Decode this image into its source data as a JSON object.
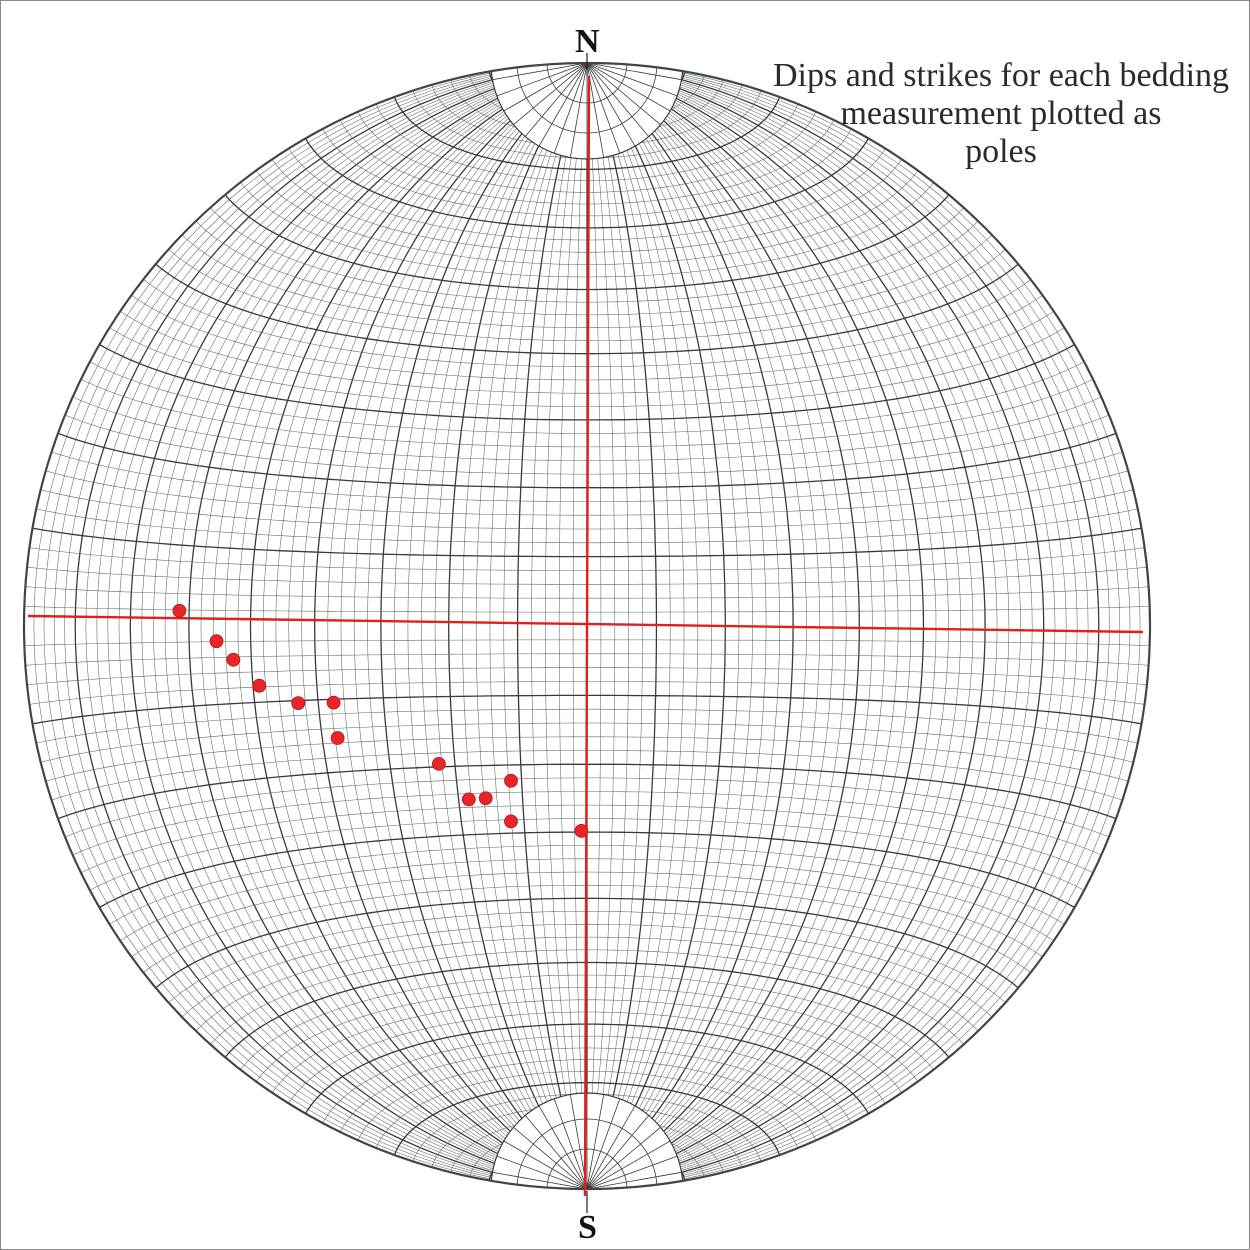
{
  "labels": {
    "north": "N",
    "south": "S"
  },
  "caption": {
    "line1": "Dips and strikes for each bedding",
    "line2": "measurement plotted as",
    "line3": "poles"
  },
  "colors": {
    "net_lines": "#3a3a3a",
    "net_fine": "#5c6b5c",
    "axes": "#e21f1f",
    "poles": "#e8262a",
    "primitive": "#444444"
  },
  "poles": {
    "units": "net-normalized (center 0,0; radius 1; x east, y north)",
    "points": [
      {
        "x": -0.724,
        "y": 0.027
      },
      {
        "x": -0.658,
        "y": -0.027
      },
      {
        "x": -0.628,
        "y": -0.06
      },
      {
        "x": -0.582,
        "y": -0.106
      },
      {
        "x": -0.513,
        "y": -0.137
      },
      {
        "x": -0.45,
        "y": -0.136
      },
      {
        "x": -0.443,
        "y": -0.199
      },
      {
        "x": -0.263,
        "y": -0.245
      },
      {
        "x": -0.135,
        "y": -0.275
      },
      {
        "x": -0.21,
        "y": -0.308
      },
      {
        "x": -0.18,
        "y": -0.306
      },
      {
        "x": -0.135,
        "y": -0.347
      },
      {
        "x": -0.01,
        "y": -0.364
      }
    ]
  }
}
